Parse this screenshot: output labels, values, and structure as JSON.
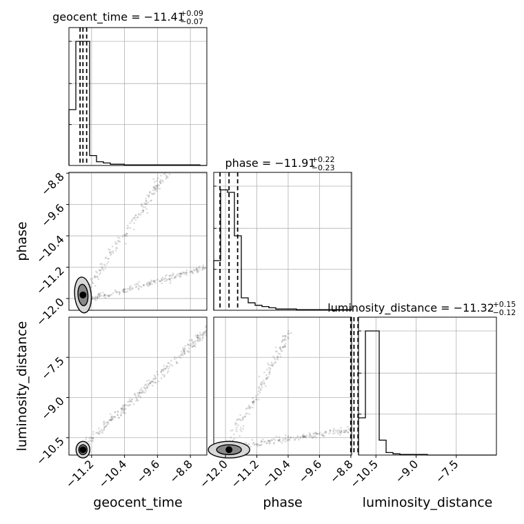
{
  "chart_data": {
    "type": "corner",
    "parameters": [
      "geocent_time",
      "phase",
      "luminosity_distance"
    ],
    "axis_labels": {
      "geocent_time": "geocent_time",
      "phase": "phase",
      "luminosity_distance": "luminosity_distance"
    },
    "ranges": {
      "geocent_time": [
        -11.75,
        -8.4
      ],
      "phase": [
        -12.3,
        -8.78
      ],
      "luminosity_distance": [
        -11.15,
        -6.0
      ]
    },
    "ticks": {
      "geocent_time": [
        "-11.2",
        "-10.4",
        "-9.6",
        "-8.8"
      ],
      "phase": [
        "-12.0",
        "-11.2",
        "-10.4",
        "-9.6",
        "-8.8"
      ],
      "luminosity_distance": [
        "-10.5",
        "-9.0",
        "-7.5"
      ]
    },
    "tick_values": {
      "geocent_time": [
        -11.2,
        -10.4,
        -9.6,
        -8.8
      ],
      "phase": [
        -12.0,
        -11.2,
        -10.4,
        -9.6,
        -8.8
      ],
      "luminosity_distance": [
        -10.5,
        -9.0,
        -7.5
      ]
    },
    "titles": [
      {
        "param": "geocent_time",
        "main": "geocent_time = −11.41",
        "sup": "+0.09",
        "sub": "−0.07"
      },
      {
        "param": "phase",
        "main": "phase = −11.91",
        "sup": "+0.22",
        "sub": "−0.23"
      },
      {
        "param": "luminosity_distance",
        "main": "luminosity_distance = −11.32",
        "sup": "+0.15",
        "sub": "−0.12"
      }
    ],
    "quantiles": {
      "geocent_time": [
        -11.48,
        -11.41,
        -11.32
      ],
      "phase": [
        -12.14,
        -11.91,
        -11.69
      ],
      "luminosity_distance": [
        -11.44,
        -11.32,
        -11.17
      ]
    },
    "histograms": {
      "geocent_time": {
        "edges_from": -11.75,
        "edges_to": -8.4,
        "counts": [
          0.45,
          1.0,
          1.0,
          0.08,
          0.03,
          0.02,
          0.01,
          0.01,
          0.005,
          0.005,
          0.005,
          0.005,
          0.005,
          0.005,
          0.005,
          0.005,
          0.005,
          0.005,
          0.005,
          0.0
        ]
      },
      "phase": {
        "edges_from": -12.3,
        "edges_to": -8.78,
        "counts": [
          0.4,
          0.97,
          0.95,
          0.6,
          0.1,
          0.06,
          0.04,
          0.03,
          0.02,
          0.01,
          0.01,
          0.01,
          0.005,
          0.005,
          0.005,
          0.005,
          0.005,
          0.005,
          0.005,
          0.005
        ]
      },
      "luminosity_distance": {
        "edges_from": -11.15,
        "edges_to": -6.0,
        "counts": [
          0.3,
          1.0,
          1.0,
          0.12,
          0.02,
          0.01,
          0.005,
          0.005,
          0.005,
          0.005,
          0.0,
          0.0,
          0.0,
          0.0,
          0.0,
          0.0,
          0.0,
          0.0,
          0.0,
          0.0
        ]
      }
    },
    "grid": true,
    "colors": {
      "line": "#000000",
      "points": "#000000",
      "grid": "#b0b0b0"
    }
  }
}
